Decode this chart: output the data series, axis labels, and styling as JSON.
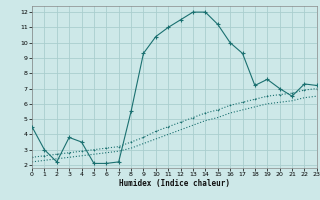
{
  "xlabel": "Humidex (Indice chaleur)",
  "bg_color": "#cde8e8",
  "grid_color": "#aacece",
  "line_color": "#1a7070",
  "line1_x": [
    0,
    1,
    2,
    3,
    4,
    5,
    6,
    7,
    8,
    9,
    10,
    11,
    12,
    13,
    14,
    15,
    16,
    17,
    18,
    19,
    20,
    21,
    22,
    23
  ],
  "line1_y": [
    4.5,
    3.0,
    2.2,
    3.8,
    3.5,
    2.1,
    2.1,
    2.2,
    5.5,
    9.3,
    10.4,
    11.0,
    11.5,
    12.0,
    12.0,
    11.2,
    10.0,
    9.3,
    7.2,
    7.6,
    7.0,
    6.5,
    7.3,
    7.2
  ],
  "line2_x": [
    0,
    1,
    2,
    3,
    4,
    5,
    6,
    7,
    8,
    9,
    10,
    11,
    12,
    13,
    14,
    15,
    16,
    17,
    18,
    19,
    20,
    21,
    22,
    23
  ],
  "line2_y": [
    2.5,
    2.6,
    2.7,
    2.8,
    2.9,
    3.0,
    3.1,
    3.2,
    3.5,
    3.8,
    4.2,
    4.5,
    4.8,
    5.1,
    5.4,
    5.6,
    5.9,
    6.1,
    6.3,
    6.5,
    6.6,
    6.7,
    6.9,
    7.0
  ],
  "line3_x": [
    0,
    1,
    2,
    3,
    4,
    5,
    6,
    7,
    8,
    9,
    10,
    11,
    12,
    13,
    14,
    15,
    16,
    17,
    18,
    19,
    20,
    21,
    22,
    23
  ],
  "line3_y": [
    2.2,
    2.3,
    2.4,
    2.5,
    2.6,
    2.7,
    2.8,
    2.9,
    3.1,
    3.4,
    3.7,
    4.0,
    4.3,
    4.6,
    4.9,
    5.1,
    5.4,
    5.6,
    5.8,
    6.0,
    6.1,
    6.2,
    6.4,
    6.5
  ],
  "xlim": [
    0,
    23
  ],
  "ylim": [
    1.8,
    12.4
  ],
  "xticks": [
    0,
    1,
    2,
    3,
    4,
    5,
    6,
    7,
    8,
    9,
    10,
    11,
    12,
    13,
    14,
    15,
    16,
    17,
    18,
    19,
    20,
    21,
    22,
    23
  ],
  "yticks": [
    2,
    3,
    4,
    5,
    6,
    7,
    8,
    9,
    10,
    11,
    12
  ]
}
